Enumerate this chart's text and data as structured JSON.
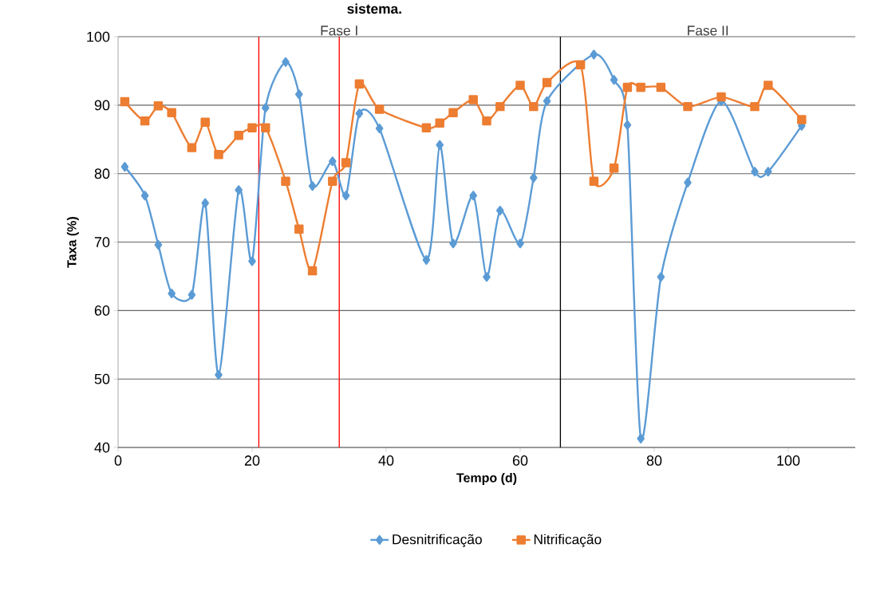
{
  "chart_data": {
    "type": "line",
    "title": "sistema.",
    "xlabel": "Tempo (d)",
    "ylabel": "Taxa  (%)",
    "xlim": [
      0,
      110
    ],
    "xticks": [
      0,
      20,
      40,
      60,
      80,
      100
    ],
    "ylim": [
      40,
      100
    ],
    "yticks": [
      40,
      50,
      60,
      70,
      80,
      90,
      100
    ],
    "grid": "y",
    "legend": "bottom",
    "series": [
      {
        "name": "Desnitrificação",
        "color": "#5b9bd5",
        "marker": "diamond",
        "x": [
          1,
          4,
          6,
          8,
          11,
          13,
          15,
          18,
          20,
          22,
          25,
          27,
          29,
          32,
          34,
          36,
          39,
          46,
          48,
          50,
          53,
          55,
          57,
          60,
          62,
          64,
          71,
          74,
          76,
          78,
          81,
          85,
          90,
          95,
          97,
          102
        ],
        "values": [
          81.0,
          76.8,
          69.6,
          62.5,
          62.3,
          75.7,
          50.6,
          77.6,
          67.2,
          89.6,
          96.3,
          91.6,
          78.2,
          81.8,
          76.8,
          88.8,
          86.6,
          67.4,
          84.2,
          69.8,
          76.8,
          64.9,
          74.6,
          69.8,
          79.4,
          90.6,
          97.4,
          93.7,
          87.1,
          41.3,
          64.9,
          78.7,
          90.6,
          80.3,
          80.3,
          87.0
        ]
      },
      {
        "name": "Nitrificação",
        "color": "#ed7d31",
        "marker": "square",
        "x": [
          1,
          4,
          6,
          8,
          11,
          13,
          15,
          18,
          20,
          22,
          25,
          27,
          29,
          32,
          34,
          36,
          39,
          46,
          48,
          50,
          53,
          55,
          57,
          60,
          62,
          64,
          69,
          71,
          74,
          76,
          78,
          81,
          85,
          90,
          95,
          97,
          102
        ],
        "values": [
          90.5,
          87.7,
          89.9,
          88.9,
          83.8,
          87.5,
          82.8,
          85.6,
          86.7,
          86.7,
          78.9,
          71.9,
          65.8,
          78.9,
          81.6,
          93.1,
          89.4,
          86.7,
          87.4,
          88.9,
          90.8,
          87.7,
          89.8,
          92.9,
          89.8,
          93.3,
          95.9,
          78.9,
          80.8,
          92.6,
          92.6,
          92.6,
          89.8,
          91.2,
          89.8,
          92.9,
          87.9
        ]
      }
    ],
    "ref_lines": [
      {
        "axis": "x",
        "value": 21,
        "color": "#ff0000"
      },
      {
        "axis": "x",
        "value": 33,
        "color": "#ff0000"
      },
      {
        "axis": "x",
        "value": 66,
        "color": "#000000"
      }
    ],
    "annotations": [
      "Fase I",
      "Fase II"
    ]
  }
}
